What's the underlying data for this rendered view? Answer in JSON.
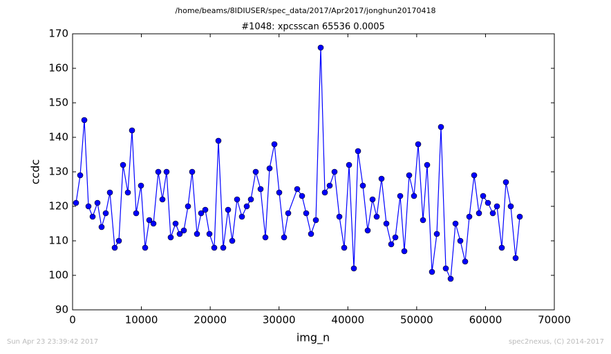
{
  "chart_data": {
    "type": "line",
    "suptitle": "/home/beams/8IDIUSER/spec_data/2017/Apr2017/jonghun20170418",
    "title": "#1048: xpcsscan 65536 0.0005",
    "x_label": "img_n",
    "y_label": "ccdc",
    "footer_left": "Sun Apr 23 23:39:42 2017",
    "footer_right": "spec2nexus, (C) 2014-2017",
    "x": [
      502,
      1105,
      1707,
      2310,
      2913,
      3616,
      4218,
      4821,
      5423,
      6126,
      6729,
      7332,
      8035,
      8637,
      9240,
      9943,
      10545,
      11148,
      11751,
      12454,
      13056,
      13659,
      14261,
      14964,
      15567,
      16170,
      16772,
      17375,
      18078,
      18680,
      19283,
      19886,
      20589,
      21191,
      21894,
      22597,
      23200,
      23903,
      24606,
      25309,
      25911,
      26614,
      27317,
      28020,
      28623,
      29326,
      30029,
      30732,
      31335,
      32640,
      33343,
      33946,
      34649,
      35352,
      36055,
      36657,
      37360,
      38063,
      38766,
      39470,
      40173,
      40875,
      41478,
      42181,
      42884,
      43588,
      44190,
      44893,
      45596,
      46299,
      46902,
      47605,
      48207,
      48910,
      49613,
      50216,
      50919,
      51521,
      52224,
      52928,
      53530,
      54233,
      54936,
      55639,
      56342,
      57045,
      57648,
      58351,
      59054,
      59656,
      60359,
      61062,
      61665,
      62368,
      62970,
      63673,
      64376,
      64980
    ],
    "series": [
      {
        "color": "#0000ff",
        "values": [
          121,
          129,
          145,
          120,
          117,
          121,
          114,
          118,
          124,
          108,
          110,
          132,
          124,
          142,
          118,
          126,
          108,
          116,
          115,
          130,
          122,
          130,
          111,
          115,
          112,
          113,
          120,
          130,
          112,
          118,
          119,
          112,
          108,
          139,
          108,
          119,
          110,
          122,
          117,
          120,
          122,
          130,
          125,
          111,
          131,
          138,
          124,
          111,
          118,
          125,
          123,
          118,
          112,
          116,
          166,
          124,
          126,
          130,
          117,
          108,
          132,
          102,
          136,
          126,
          113,
          122,
          117,
          128,
          115,
          109,
          111,
          123,
          107,
          129,
          123,
          138,
          116,
          132,
          101,
          112,
          143,
          102,
          99,
          115,
          110,
          104,
          117,
          129,
          118,
          123,
          121,
          118,
          120,
          108,
          127,
          120,
          105,
          117
        ]
      }
    ],
    "xlim": [
      0,
      70000
    ],
    "xticks": [
      0,
      10000,
      20000,
      30000,
      40000,
      50000,
      60000,
      70000
    ],
    "ylim": [
      90,
      170
    ],
    "yticks": [
      90,
      100,
      110,
      120,
      130,
      140,
      150,
      160,
      170
    ]
  }
}
